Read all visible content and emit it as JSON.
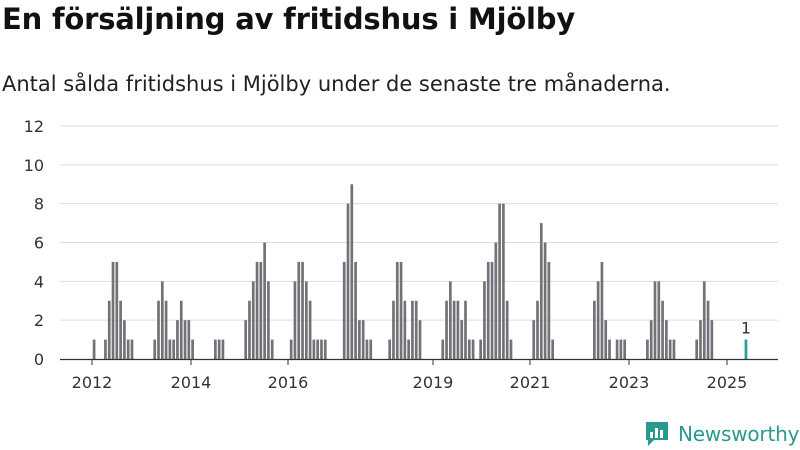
{
  "title": "En försäljning av fritidshus i Mjölby",
  "subtitle": "Antal sålda fritidshus i Mjölby under de senaste tre månaderna.",
  "brand": "Newsworthy",
  "colors": {
    "bar": "#737278",
    "highlight": "#1fa39a",
    "grid": "#dddddd",
    "axis": "#333333",
    "brand": "#2a9a8e"
  },
  "chart_data": {
    "type": "bar",
    "title": "En försäljning av fritidshus i Mjölby",
    "subtitle": "Antal sålda fritidshus i Mjölby under de senaste tre månaderna.",
    "xlabel": "",
    "ylabel": "",
    "ylim": [
      0,
      12
    ],
    "yticks": [
      0,
      2,
      4,
      6,
      8,
      10,
      12
    ],
    "xticks": [
      "2012",
      "2014",
      "2016",
      "2019",
      "2021",
      "2023",
      "2025"
    ],
    "grid": true,
    "highlight_label": "1",
    "values": [
      0,
      0,
      1,
      0,
      0,
      1,
      3,
      5,
      5,
      3,
      2,
      1,
      1,
      0,
      0,
      0,
      0,
      0,
      1,
      3,
      4,
      3,
      1,
      1,
      2,
      3,
      2,
      2,
      1,
      0,
      0,
      0,
      0,
      0,
      1,
      1,
      1,
      0,
      0,
      0,
      0,
      0,
      2,
      3,
      4,
      5,
      5,
      6,
      4,
      1,
      0,
      0,
      0,
      0,
      1,
      4,
      5,
      5,
      4,
      3,
      1,
      1,
      1,
      1,
      0,
      0,
      0,
      0,
      5,
      8,
      9,
      5,
      2,
      2,
      1,
      1,
      0,
      0,
      0,
      0,
      1,
      3,
      5,
      5,
      3,
      1,
      3,
      3,
      2,
      0,
      0,
      0,
      0,
      0,
      1,
      3,
      4,
      3,
      3,
      2,
      3,
      1,
      1,
      0,
      1,
      4,
      5,
      5,
      6,
      8,
      8,
      3,
      1,
      0,
      0,
      0,
      0,
      0,
      2,
      3,
      7,
      6,
      5,
      1,
      0,
      0,
      0,
      0,
      0,
      0,
      0,
      0,
      0,
      0,
      3,
      4,
      5,
      2,
      1,
      0,
      1,
      1,
      1,
      0,
      0,
      0,
      0,
      0,
      1,
      2,
      4,
      4,
      3,
      2,
      1,
      1,
      0,
      0,
      0,
      0,
      0,
      1,
      2,
      4,
      3,
      2,
      0,
      0,
      0,
      0,
      0,
      0,
      0,
      0,
      1
    ]
  }
}
